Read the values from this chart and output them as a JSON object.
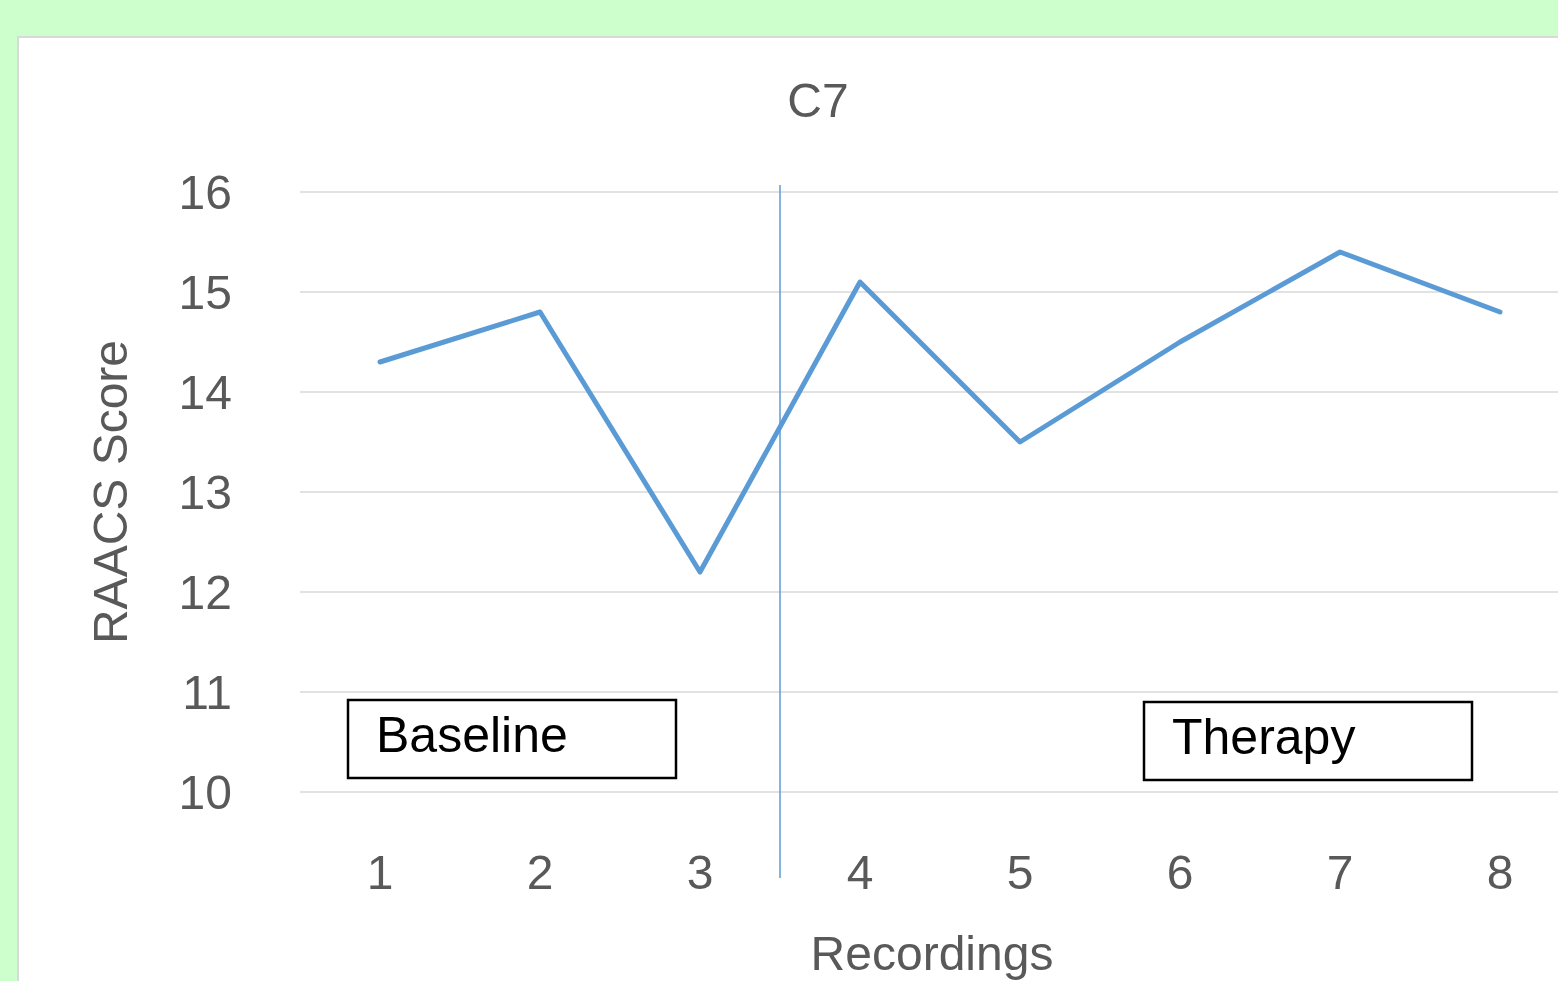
{
  "chart_data": {
    "type": "line",
    "title": "C7",
    "xlabel": "Recordings",
    "ylabel": "RAACS Score",
    "x": [
      1,
      2,
      3,
      4,
      5,
      6,
      7,
      8
    ],
    "series": [
      {
        "color": "#5b9bd5",
        "values": [
          14.3,
          14.8,
          12.2,
          15.1,
          13.5,
          14.5,
          15.4,
          14.8
        ]
      }
    ],
    "xlim": [
      0.5,
      8.5
    ],
    "xticks": [
      1,
      2,
      3,
      4,
      5,
      6,
      7,
      8
    ],
    "ylim": [
      10,
      16
    ],
    "yticks": [
      10,
      11,
      12,
      13,
      14,
      15,
      16
    ],
    "grid": "y",
    "marker": "none",
    "line_style": "solid",
    "ref_lines": [
      {
        "axis": "x",
        "value": 3.5,
        "color": "#5b9bd5"
      }
    ],
    "annotations": [
      "Baseline",
      "Therapy"
    ]
  }
}
